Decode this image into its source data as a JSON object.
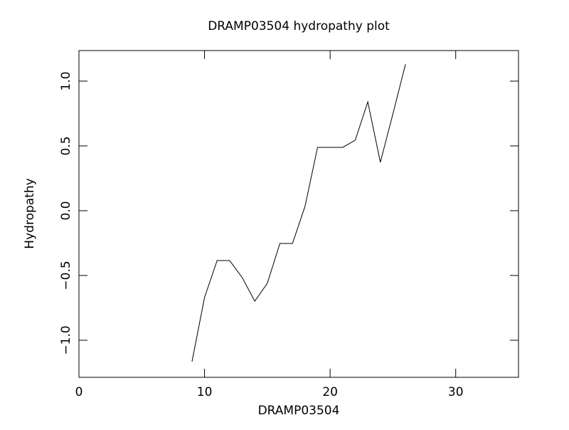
{
  "chart_data": {
    "type": "line",
    "title": "DRAMP03504 hydropathy plot",
    "x_label": "DRAMP03504",
    "y_label": "Hydropathy",
    "x": [
      9,
      10,
      11,
      12,
      13,
      14,
      15,
      16,
      17,
      18,
      19,
      20,
      21,
      22,
      23,
      24,
      25,
      26
    ],
    "series": [
      {
        "color": "#000000",
        "values": [
          -1.165,
          -0.67,
          -0.385,
          -0.385,
          -0.516,
          -0.698,
          -0.56,
          -0.253,
          -0.253,
          0.033,
          0.489,
          0.489,
          0.489,
          0.544,
          0.84,
          0.374,
          0.747,
          1.13
        ]
      }
    ],
    "xlim": [
      0,
      35
    ],
    "ylim": [
      -1.286,
      1.236
    ],
    "xticks": [
      0,
      10,
      20,
      30
    ],
    "yticks": [
      {
        "value": -1.0,
        "label": "−1.0"
      },
      {
        "value": -0.5,
        "label": "−0.5"
      },
      {
        "value": 0.0,
        "label": "0.0"
      },
      {
        "value": 0.5,
        "label": "0.5"
      },
      {
        "value": 1.0,
        "label": "1.0"
      }
    ]
  }
}
